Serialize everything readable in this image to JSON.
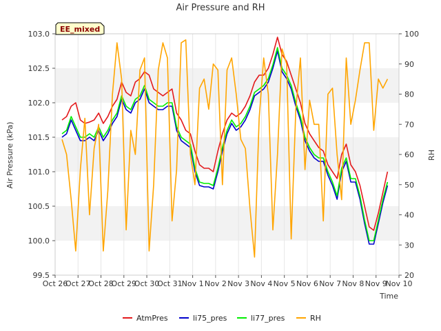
{
  "chart_data": {
    "type": "line",
    "title": "Air Pressure and RH",
    "xlabel": "Time",
    "ylabel": "Air Pressure (kPa)",
    "y2label": "RH",
    "badge": "EE_mixed",
    "x_ticks": [
      "Oct 26",
      "Oct 27",
      "Oct 28",
      "Oct 29",
      "Oct 30",
      "Oct 31",
      "Nov 1",
      "Nov 2",
      "Nov 3",
      "Nov 4",
      "Nov 5",
      "Nov 6",
      "Nov 7",
      "Nov 8",
      "Nov 9",
      "Nov 10"
    ],
    "xlim": [
      0,
      15
    ],
    "ylim": [
      99.5,
      103.0
    ],
    "y_ticks": [
      "99.5",
      "100.0",
      "100.5",
      "101.0",
      "101.5",
      "102.0",
      "102.5",
      "103.0"
    ],
    "y2lim": [
      20,
      100
    ],
    "y2_ticks": [
      "20",
      "30",
      "40",
      "50",
      "60",
      "70",
      "80",
      "90",
      "100"
    ],
    "grid_bands": true,
    "legend_position": "bottom-center",
    "x": [
      0.3,
      0.5,
      0.7,
      0.9,
      1.1,
      1.3,
      1.5,
      1.7,
      1.9,
      2.1,
      2.3,
      2.5,
      2.7,
      2.9,
      3.1,
      3.3,
      3.5,
      3.7,
      3.9,
      4.1,
      4.3,
      4.5,
      4.7,
      4.9,
      5.1,
      5.3,
      5.5,
      5.7,
      5.9,
      6.1,
      6.3,
      6.5,
      6.7,
      6.9,
      7.1,
      7.3,
      7.5,
      7.7,
      7.9,
      8.1,
      8.3,
      8.5,
      8.7,
      8.9,
      9.1,
      9.3,
      9.5,
      9.7,
      9.9,
      10.1,
      10.3,
      10.5,
      10.7,
      10.9,
      11.1,
      11.3,
      11.5,
      11.7,
      11.9,
      12.1,
      12.3,
      12.5,
      12.7,
      12.9,
      13.1,
      13.3,
      13.5,
      13.7,
      13.9,
      14.1,
      14.3,
      14.5
    ],
    "series": [
      {
        "name": "AtmPres",
        "color": "#e31a1c",
        "axis": "left",
        "values": [
          101.75,
          101.8,
          101.95,
          102.0,
          101.75,
          101.7,
          101.72,
          101.75,
          101.85,
          101.7,
          101.8,
          101.95,
          102.05,
          102.3,
          102.15,
          102.1,
          102.3,
          102.35,
          102.45,
          102.4,
          102.2,
          102.15,
          102.1,
          102.15,
          102.2,
          101.85,
          101.75,
          101.6,
          101.55,
          101.3,
          101.1,
          101.05,
          101.05,
          101.0,
          101.3,
          101.55,
          101.75,
          101.85,
          101.8,
          101.85,
          101.95,
          102.1,
          102.3,
          102.4,
          102.4,
          102.5,
          102.7,
          102.95,
          102.7,
          102.6,
          102.4,
          102.2,
          102.0,
          101.7,
          101.55,
          101.45,
          101.35,
          101.3,
          101.1,
          101.0,
          100.9,
          101.25,
          101.4,
          101.1,
          101.0,
          100.8,
          100.5,
          100.2,
          100.15,
          100.4,
          100.7,
          101.0
        ]
      },
      {
        "name": "li75_pres",
        "color": "#0000cc",
        "axis": "left",
        "values": [
          101.5,
          101.55,
          101.75,
          101.6,
          101.45,
          101.45,
          101.5,
          101.45,
          101.6,
          101.45,
          101.55,
          101.7,
          101.8,
          102.05,
          101.9,
          101.85,
          102.0,
          102.05,
          102.2,
          102.0,
          101.95,
          101.9,
          101.9,
          101.95,
          101.95,
          101.6,
          101.45,
          101.4,
          101.35,
          101.0,
          100.8,
          100.78,
          100.78,
          100.75,
          101.0,
          101.3,
          101.55,
          101.7,
          101.6,
          101.65,
          101.75,
          101.9,
          102.1,
          102.15,
          102.2,
          102.3,
          102.5,
          102.75,
          102.45,
          102.35,
          102.2,
          101.95,
          101.75,
          101.45,
          101.3,
          101.2,
          101.15,
          101.15,
          100.95,
          100.8,
          100.6,
          101.0,
          101.15,
          100.85,
          100.85,
          100.6,
          100.25,
          99.95,
          99.95,
          100.25,
          100.55,
          100.8
        ]
      },
      {
        "name": "li77_pres",
        "color": "#00ee00",
        "axis": "left",
        "values": [
          101.55,
          101.6,
          101.8,
          101.65,
          101.5,
          101.5,
          101.55,
          101.5,
          101.65,
          101.5,
          101.6,
          101.75,
          101.85,
          102.1,
          101.95,
          101.9,
          102.05,
          102.1,
          102.25,
          102.05,
          102.0,
          101.95,
          101.95,
          102.0,
          102.0,
          101.65,
          101.5,
          101.45,
          101.4,
          101.05,
          100.85,
          100.83,
          100.83,
          100.8,
          101.05,
          101.35,
          101.6,
          101.75,
          101.65,
          101.7,
          101.8,
          101.95,
          102.15,
          102.2,
          102.25,
          102.35,
          102.55,
          102.8,
          102.5,
          102.4,
          102.25,
          102.0,
          101.8,
          101.5,
          101.35,
          101.25,
          101.2,
          101.2,
          101.0,
          100.85,
          100.65,
          101.05,
          101.2,
          100.9,
          100.9,
          100.65,
          100.3,
          100.0,
          100.0,
          100.3,
          100.6,
          100.85
        ]
      },
      {
        "name": "RH",
        "color": "#ffa500",
        "axis": "right",
        "values": [
          65,
          60,
          45,
          28,
          55,
          72,
          40,
          62,
          70,
          28,
          48,
          80,
          97,
          85,
          35,
          68,
          60,
          88,
          92,
          28,
          50,
          88,
          97,
          92,
          38,
          55,
          97,
          98,
          60,
          50,
          82,
          85,
          75,
          90,
          88,
          50,
          88,
          92,
          80,
          65,
          62,
          42,
          26,
          72,
          92,
          80,
          35,
          60,
          95,
          90,
          32,
          75,
          92,
          55,
          78,
          70,
          70,
          38,
          80,
          82,
          60,
          45,
          92,
          70,
          78,
          88,
          97,
          97,
          68,
          85,
          82,
          85
        ]
      }
    ]
  }
}
